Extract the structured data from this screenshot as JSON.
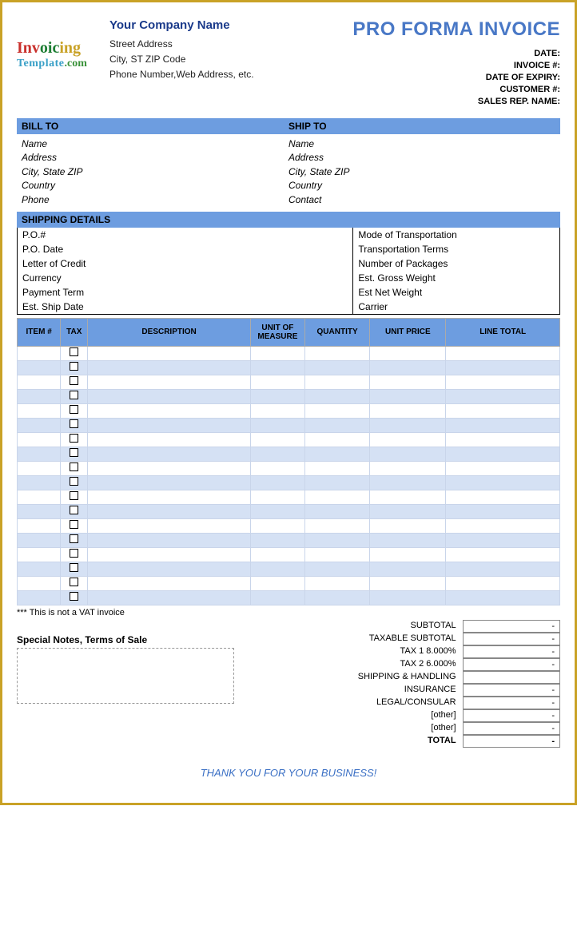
{
  "logo": {
    "line1_parts": [
      "Inv",
      "oic",
      "ing"
    ],
    "line2_template": "Template",
    "line2_com": ".com"
  },
  "company": {
    "name": "Your Company Name",
    "street": "Street Address",
    "citystzip": "City, ST  ZIP Code",
    "contact": "Phone Number,Web Address, etc."
  },
  "doc_title": "PRO FORMA INVOICE",
  "meta": {
    "date": "DATE:",
    "invoice_no": "INVOICE #:",
    "expiry": "DATE OF EXPIRY:",
    "customer_no": "CUSTOMER #:",
    "sales_rep": "SALES REP. NAME:"
  },
  "billto": {
    "header": "BILL TO",
    "name": "Name",
    "address": "Address",
    "citystzip": "City, State ZIP",
    "country": "Country",
    "phone": "Phone"
  },
  "shipto": {
    "header": "SHIP TO",
    "name": "Name",
    "address": "Address",
    "citystzip": "City, State ZIP",
    "country": "Country",
    "contact": "Contact"
  },
  "shipping_details": {
    "header": "SHIPPING DETAILS",
    "left": [
      "P.O.#",
      "P.O. Date",
      "Letter of Credit",
      "Currency",
      "Payment Term",
      "Est. Ship Date"
    ],
    "right": [
      "Mode of Transportation",
      "Transportation Terms",
      "Number of Packages",
      "Est. Gross Weight",
      "Est Net Weight",
      "Carrier"
    ]
  },
  "items": {
    "headers": [
      "ITEM #",
      "TAX",
      "DESCRIPTION",
      "UNIT OF MEASURE",
      "QUANTITY",
      "UNIT PRICE",
      "LINE TOTAL"
    ],
    "row_count": 18
  },
  "vat_note": "*** This is not a VAT invoice",
  "totals": {
    "rows": [
      {
        "label": "SUBTOTAL",
        "val": "-",
        "bold": false
      },
      {
        "label": "TAXABLE SUBTOTAL",
        "val": "-",
        "bold": false
      },
      {
        "label": "TAX 1        8.000%",
        "val": "-",
        "bold": false
      },
      {
        "label": "TAX 2        6.000%",
        "val": "-",
        "bold": false
      },
      {
        "label": "SHIPPING & HANDLING",
        "val": "",
        "bold": false
      },
      {
        "label": "INSURANCE",
        "val": "-",
        "bold": false
      },
      {
        "label": "LEGAL/CONSULAR",
        "val": "-",
        "bold": false
      },
      {
        "label": "[other]",
        "val": "-",
        "bold": false
      },
      {
        "label": "[other]",
        "val": "-",
        "bold": false
      },
      {
        "label": "TOTAL",
        "val": "-",
        "bold": true
      }
    ]
  },
  "notes_title": "Special Notes, Terms of Sale",
  "thanks": "THANK YOU FOR YOUR BUSINESS!",
  "colors": {
    "frame": "#c9a227",
    "header_blue": "#6d9de0",
    "alt_row": "#d5e1f4",
    "title_blue": "#4978c6",
    "company_blue": "#1a3a8a"
  }
}
